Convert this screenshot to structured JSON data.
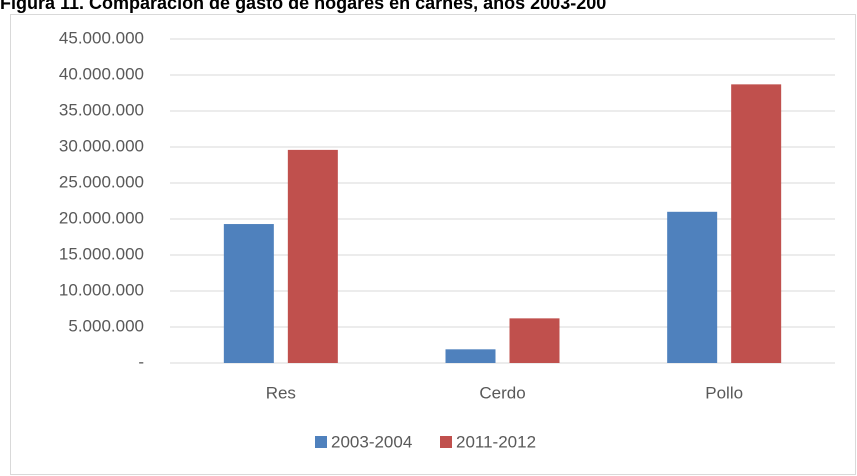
{
  "chart_data": {
    "type": "bar",
    "title": "Figura 11. Comparación de gasto de hogares en carnes, años 2003-200",
    "categories": [
      "Res",
      "Cerdo",
      "Pollo"
    ],
    "series": [
      {
        "name": "2003-2004",
        "color": "#4f81bd",
        "values": [
          19300000,
          1900000,
          21000000
        ]
      },
      {
        "name": "2011-2012",
        "color": "#c0504d",
        "values": [
          29600000,
          6200000,
          38700000
        ]
      }
    ],
    "ylim": [
      0,
      45000000
    ],
    "yticks": [
      {
        "value": 0,
        "label": "-"
      },
      {
        "value": 5000000,
        "label": "5.000.000"
      },
      {
        "value": 10000000,
        "label": "10.000.000"
      },
      {
        "value": 15000000,
        "label": "15.000.000"
      },
      {
        "value": 20000000,
        "label": "20.000.000"
      },
      {
        "value": 25000000,
        "label": "25.000.000"
      },
      {
        "value": 30000000,
        "label": "30.000.000"
      },
      {
        "value": 35000000,
        "label": "35.000.000"
      },
      {
        "value": 40000000,
        "label": "40.000.000"
      },
      {
        "value": 45000000,
        "label": "45.000.000"
      }
    ],
    "grid": true,
    "legend": "bottom"
  }
}
